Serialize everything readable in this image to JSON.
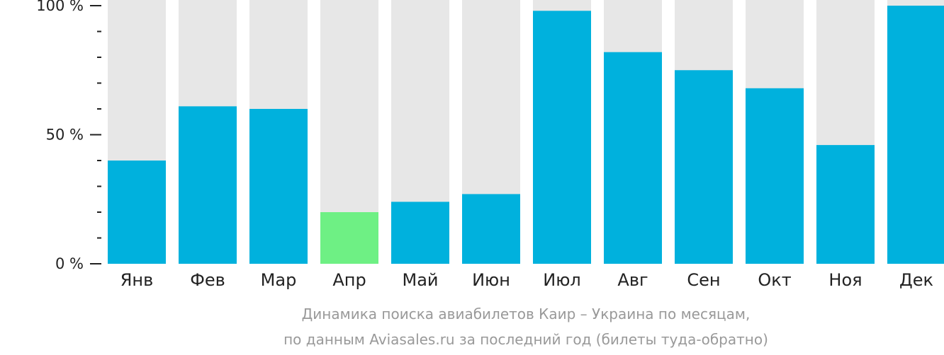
{
  "chart_data": {
    "type": "bar",
    "categories": [
      "Янв",
      "Фев",
      "Мар",
      "Апр",
      "Май",
      "Июн",
      "Июл",
      "Авг",
      "Сен",
      "Окт",
      "Ноя",
      "Дек"
    ],
    "values": [
      40,
      61,
      60,
      20,
      24,
      27,
      98,
      82,
      75,
      68,
      46,
      100
    ],
    "ylim": [
      0,
      100
    ],
    "yticks": [
      "0 %",
      "50 %",
      "100 %"
    ],
    "colors": {
      "bar": "#00b1dd",
      "highlight": "#6ef084",
      "track": "#e7e7e7",
      "axis": "#222222"
    },
    "highlight_index": 3,
    "caption_lines": [
      "Динамика поиска авиабилетов Каир – Украина по месяцам,",
      "по данным Aviasales.ru за последний год (билеты туда-обратно)"
    ]
  }
}
